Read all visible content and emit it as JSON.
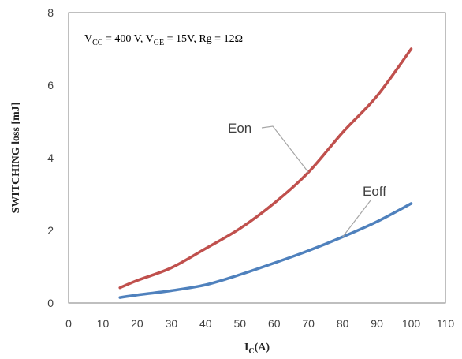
{
  "chart_data": {
    "type": "line",
    "title": "",
    "xlabel": {
      "main": "I",
      "sub": "C",
      "rest": "(A)"
    },
    "ylabel": "SWITCHING loss [mJ]",
    "xlim": [
      0,
      110
    ],
    "ylim": [
      0,
      8
    ],
    "x_ticks": [
      0,
      10,
      20,
      30,
      40,
      50,
      60,
      70,
      80,
      90,
      100,
      110
    ],
    "y_ticks": [
      0,
      2,
      4,
      6,
      8
    ],
    "grid": false,
    "legend": "none",
    "conditions": [
      {
        "main": "V",
        "sub": "CC",
        "text": " = 400 V, "
      },
      {
        "main": "V",
        "sub": "GE",
        "text": " = 15V, Rg = 12Ω"
      }
    ],
    "series": [
      {
        "name": "Eon",
        "color": "#c0504d",
        "x": [
          15,
          20,
          30,
          40,
          50,
          60,
          70,
          80,
          90,
          100
        ],
        "y": [
          0.42,
          0.62,
          0.97,
          1.5,
          2.05,
          2.75,
          3.6,
          4.7,
          5.7,
          7.0
        ]
      },
      {
        "name": "Eoff",
        "color": "#4f81bd",
        "x": [
          15,
          20,
          30,
          40,
          50,
          60,
          70,
          80,
          90,
          100
        ],
        "y": [
          0.15,
          0.22,
          0.34,
          0.5,
          0.78,
          1.1,
          1.44,
          1.82,
          2.24,
          2.74
        ]
      }
    ],
    "annotations": [
      {
        "text": "Eon",
        "series": "Eon",
        "at_x": 70
      },
      {
        "text": "Eoff",
        "series": "Eoff",
        "at_x": 80
      }
    ]
  }
}
